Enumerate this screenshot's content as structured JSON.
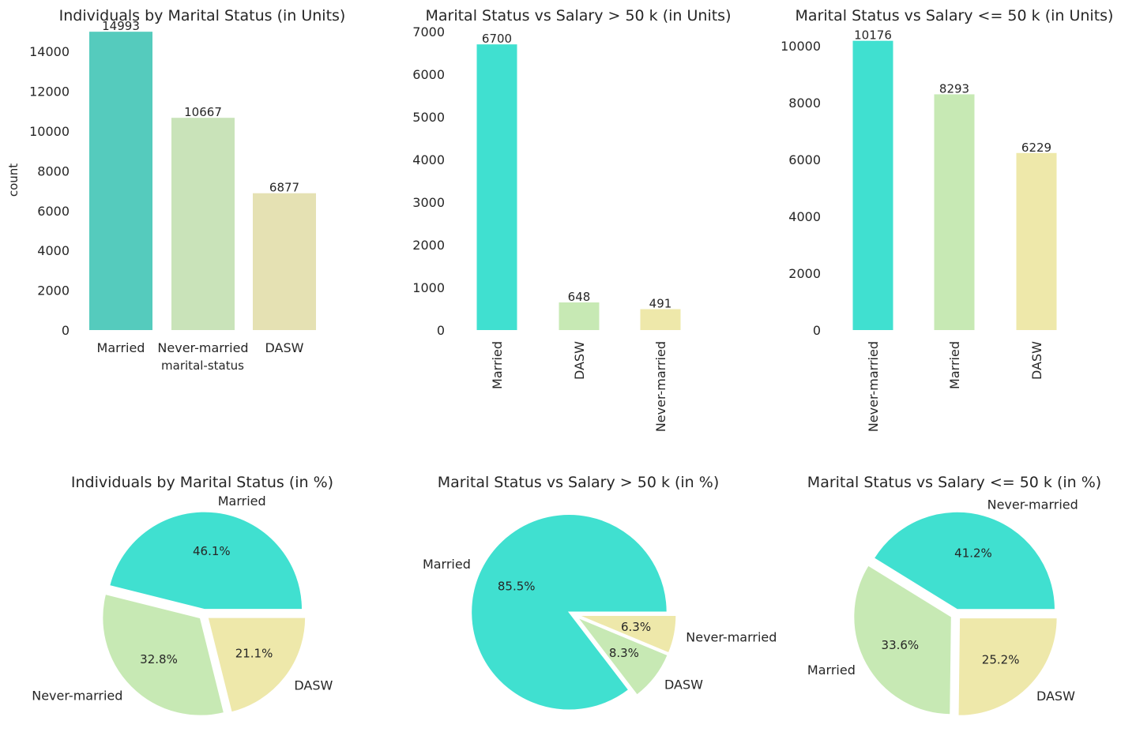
{
  "chart_data": [
    {
      "type": "bar",
      "title": "Individuals by Marital Status (in Units)",
      "xlabel": "marital-status",
      "ylabel": "count",
      "categories": [
        "Married",
        "Never-married",
        "DASW"
      ],
      "values": [
        14993,
        10667,
        6877
      ],
      "ylim": [
        0,
        15000
      ],
      "yticks": [
        0,
        2000,
        4000,
        6000,
        8000,
        10000,
        12000,
        14000
      ],
      "colors": [
        "#55cbbd",
        "#c9e3b9",
        "#e5e1b3"
      ],
      "tick_rotation": 0,
      "grid": false
    },
    {
      "type": "bar",
      "title": "Marital Status vs Salary > 50 k (in Units)",
      "xlabel": "",
      "ylabel": "",
      "categories": [
        "Married",
        "DASW",
        "Never-married"
      ],
      "values": [
        6700,
        648,
        491
      ],
      "ylim": [
        0,
        7000
      ],
      "yticks": [
        0,
        1000,
        2000,
        3000,
        4000,
        5000,
        6000,
        7000
      ],
      "colors": [
        "#40e0d0",
        "#c7e9b4",
        "#eee8aa"
      ],
      "tick_rotation": -90,
      "grid": false
    },
    {
      "type": "bar",
      "title": "Marital Status vs Salary <= 50 k (in Units)",
      "xlabel": "",
      "ylabel": "",
      "categories": [
        "Never-married",
        "Married",
        "DASW"
      ],
      "values": [
        10176,
        8293,
        6229
      ],
      "ylim": [
        0,
        10500
      ],
      "yticks": [
        0,
        2000,
        4000,
        6000,
        8000,
        10000
      ],
      "colors": [
        "#40e0d0",
        "#c7e9b4",
        "#eee8aa"
      ],
      "tick_rotation": -90,
      "grid": false
    },
    {
      "type": "pie",
      "title": "Individuals by Marital Status  (in %)",
      "labels": [
        "Married",
        "Never-married",
        "DASW"
      ],
      "values": [
        46.1,
        32.8,
        21.1
      ],
      "pct_labels": [
        "46.1%",
        "32.8%",
        "21.1%"
      ],
      "colors": [
        "#40e0d0",
        "#c7e9b4",
        "#eee8aa"
      ],
      "explode": [
        0.02,
        0.02,
        0.02
      ]
    },
    {
      "type": "pie",
      "title": "Marital Status vs Salary > 50 k (in %)",
      "labels": [
        "Married",
        "DASW",
        "Never-married"
      ],
      "values": [
        85.5,
        8.3,
        6.3
      ],
      "pct_labels": [
        "85.5%",
        "8.3%",
        "6.3%"
      ],
      "colors": [
        "#40e0d0",
        "#c7e9b4",
        "#eee8aa"
      ],
      "explode": [
        0.02,
        0.02,
        0.02
      ]
    },
    {
      "type": "pie",
      "title": "Marital Status vs Salary <= 50 k (in %)",
      "labels": [
        "Never-married",
        "Married",
        "DASW"
      ],
      "values": [
        41.2,
        33.6,
        25.2
      ],
      "pct_labels": [
        "41.2%",
        "33.6%",
        "25.2%"
      ],
      "colors": [
        "#40e0d0",
        "#c7e9b4",
        "#eee8aa"
      ],
      "explode": [
        0.02,
        0.02,
        0.02
      ]
    }
  ]
}
